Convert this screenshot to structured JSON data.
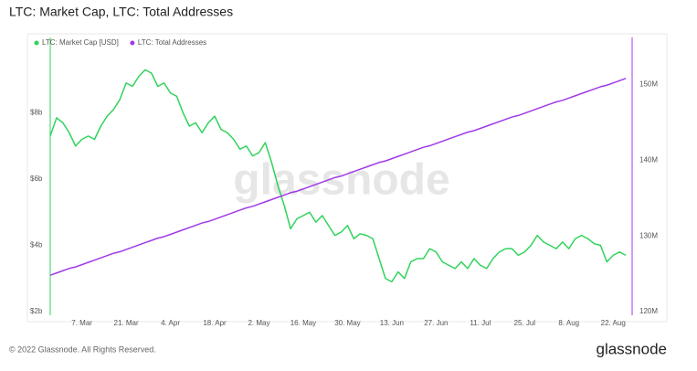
{
  "chart_data": {
    "type": "line",
    "title": "LTC: Market Cap, LTC: Total Addresses",
    "watermark": "glassnode",
    "categories": [
      null,
      null,
      null,
      null,
      null,
      "7. Mar",
      null,
      null,
      null,
      null,
      null,
      null,
      "21. Mar",
      null,
      null,
      null,
      null,
      null,
      null,
      "4. Apr",
      null,
      null,
      null,
      null,
      null,
      null,
      "18. Apr",
      null,
      null,
      null,
      null,
      null,
      null,
      "2. May",
      null,
      null,
      null,
      null,
      null,
      null,
      "16. May",
      null,
      null,
      null,
      null,
      null,
      null,
      "30. May",
      null,
      null,
      null,
      null,
      null,
      null,
      "13. Jun",
      null,
      null,
      null,
      null,
      null,
      null,
      "27. Jun",
      null,
      null,
      null,
      null,
      null,
      null,
      "11. Jul",
      null,
      null,
      null,
      null,
      null,
      null,
      "25. Jul",
      null,
      null,
      null,
      null,
      null,
      null,
      "8. Aug",
      null,
      null,
      null,
      null,
      null,
      null,
      "22. Aug",
      null,
      null,
      null
    ],
    "series": [
      {
        "name": "LTC: Market Cap [USD]",
        "color": "#2fd35a",
        "values": [
          7.3,
          7.85,
          7.7,
          7.4,
          7.0,
          7.2,
          7.3,
          7.2,
          7.6,
          7.9,
          8.1,
          8.4,
          8.9,
          8.8,
          9.1,
          9.3,
          9.2,
          8.8,
          8.9,
          8.6,
          8.5,
          8.0,
          7.6,
          7.7,
          7.4,
          7.7,
          7.9,
          7.5,
          7.4,
          7.2,
          6.9,
          7.0,
          6.7,
          6.8,
          7.1,
          6.5,
          5.8,
          5.2,
          4.5,
          4.8,
          4.9,
          5.0,
          4.7,
          4.9,
          4.6,
          4.3,
          4.4,
          4.6,
          4.2,
          4.35,
          4.3,
          4.2,
          3.6,
          3.0,
          2.9,
          3.2,
          3.0,
          3.5,
          3.6,
          3.6,
          3.9,
          3.8,
          3.5,
          3.4,
          3.3,
          3.5,
          3.3,
          3.6,
          3.4,
          3.3,
          3.6,
          3.8,
          3.9,
          3.9,
          3.7,
          3.8,
          4.0,
          4.3,
          4.1,
          4.0,
          3.9,
          4.1,
          3.9,
          4.2,
          4.3,
          4.2,
          4.05,
          4.0,
          3.5,
          3.7,
          3.8,
          3.7,
          null
        ]
      },
      {
        "name": "LTC: Total Addresses",
        "color": "#a13ae8",
        "axis": "y2",
        "values": [
          124.8,
          125.1,
          125.4,
          125.7,
          125.9,
          126.2,
          126.5,
          126.8,
          127.1,
          127.4,
          127.7,
          127.9,
          128.2,
          128.5,
          128.8,
          129.1,
          129.4,
          129.7,
          129.9,
          130.2,
          130.5,
          130.8,
          131.1,
          131.4,
          131.7,
          131.9,
          132.2,
          132.5,
          132.8,
          133.1,
          133.4,
          133.7,
          133.9,
          134.2,
          134.5,
          134.8,
          135.1,
          135.4,
          135.7,
          135.9,
          136.2,
          136.5,
          136.8,
          137.1,
          137.4,
          137.7,
          137.9,
          138.2,
          138.5,
          138.8,
          139.1,
          139.4,
          139.7,
          139.9,
          140.2,
          140.5,
          140.8,
          141.1,
          141.4,
          141.7,
          141.9,
          142.2,
          142.5,
          142.8,
          143.1,
          143.4,
          143.7,
          143.9,
          144.2,
          144.5,
          144.8,
          145.1,
          145.4,
          145.7,
          145.9,
          146.2,
          146.5,
          146.8,
          147.1,
          147.4,
          147.7,
          147.9,
          148.2,
          148.5,
          148.8,
          149.1,
          149.4,
          149.7,
          149.9,
          150.2,
          150.5,
          150.8,
          null
        ]
      }
    ],
    "ylim": [
      2,
      10
    ],
    "yticks": [
      {
        "value": 2,
        "label": "$2b"
      },
      {
        "value": 4,
        "label": "$4b"
      },
      {
        "value": 6,
        "label": "$6b"
      },
      {
        "value": 8,
        "label": "$8b"
      }
    ],
    "y2lim": [
      120,
      155
    ],
    "y2ticks": [
      {
        "value": 120,
        "label": "120M"
      },
      {
        "value": 130,
        "label": "130M"
      },
      {
        "value": 140,
        "label": "140M"
      },
      {
        "value": 150,
        "label": "150M"
      }
    ],
    "grid": false,
    "legend": "top-left"
  },
  "footer": {
    "copyright": "© 2022 Glassnode. All Rights Reserved.",
    "logo": "glassnode"
  }
}
